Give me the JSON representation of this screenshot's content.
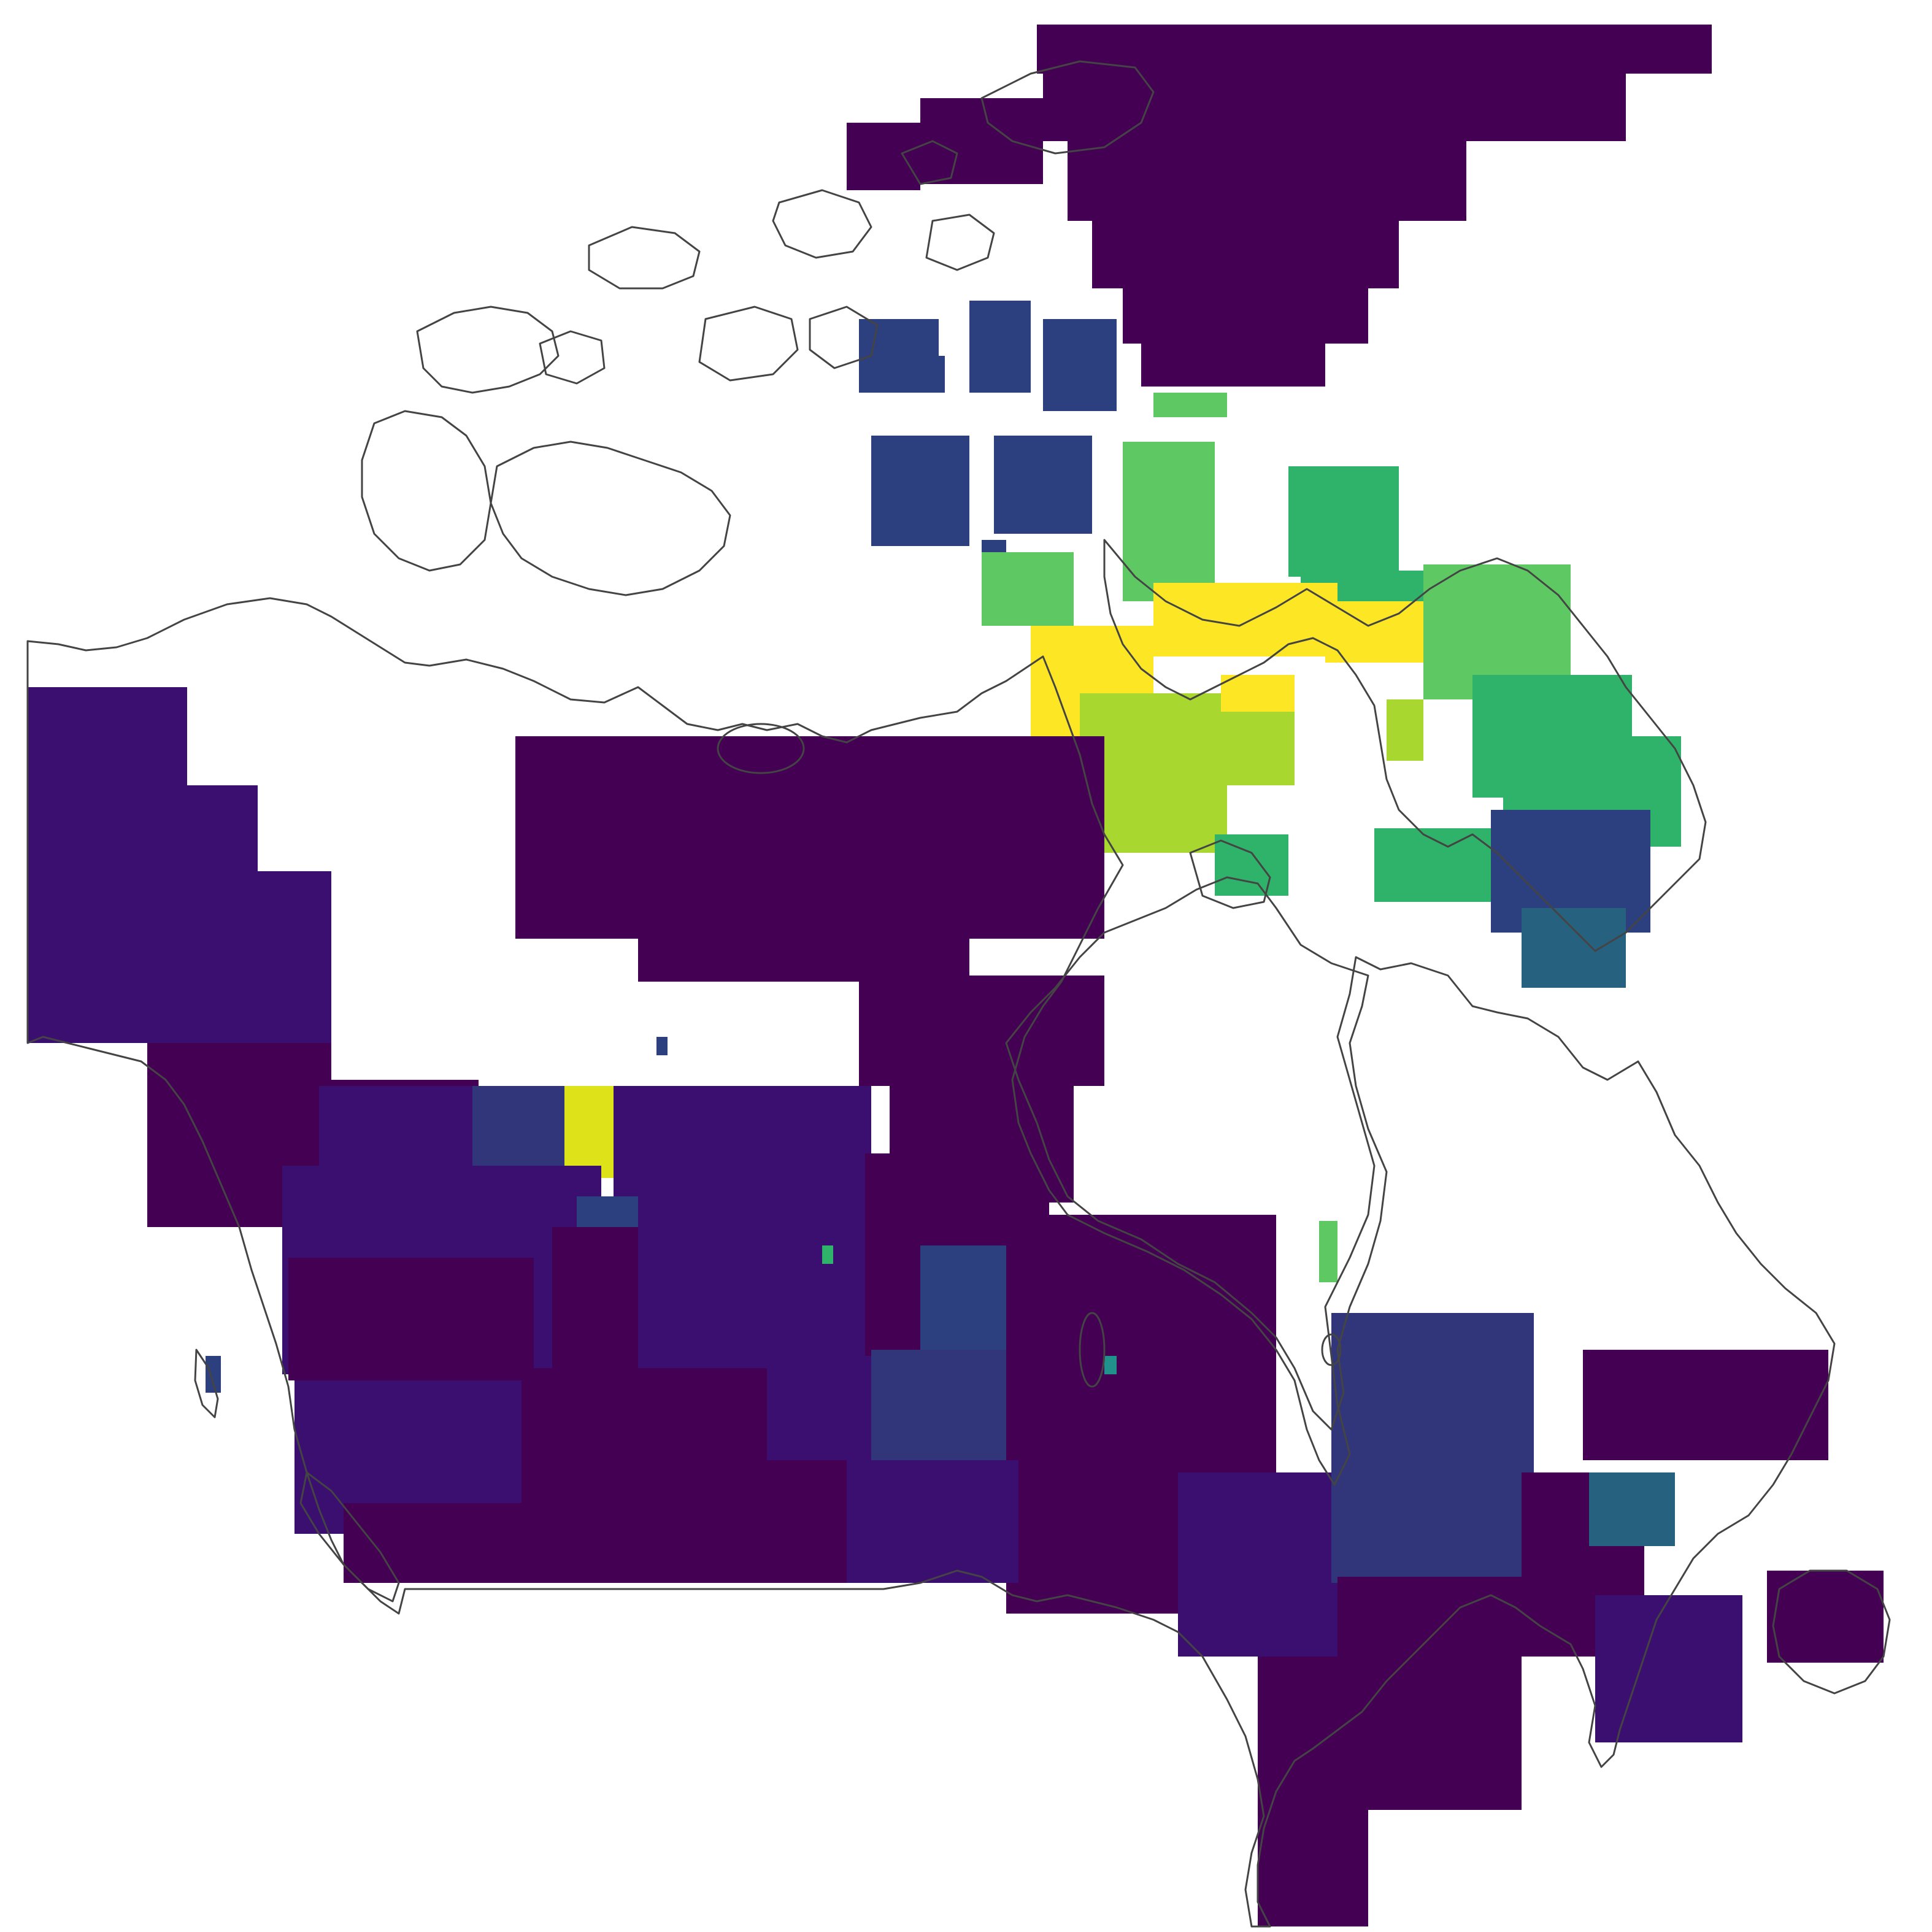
{
  "map": {
    "colormap": "viridis",
    "palette": {
      "v0": "#440154",
      "v1": "#3b0f70",
      "v2": "#31367a",
      "v3": "#2c3f7f",
      "v4": "#26617f",
      "v5": "#21918c",
      "v6": "#2fb36b",
      "v7": "#5ec962",
      "v8": "#a8d82f",
      "v9": "#dde318",
      "v10": "#fde725"
    },
    "outline_color": "#444444",
    "background": "#ffffff"
  }
}
